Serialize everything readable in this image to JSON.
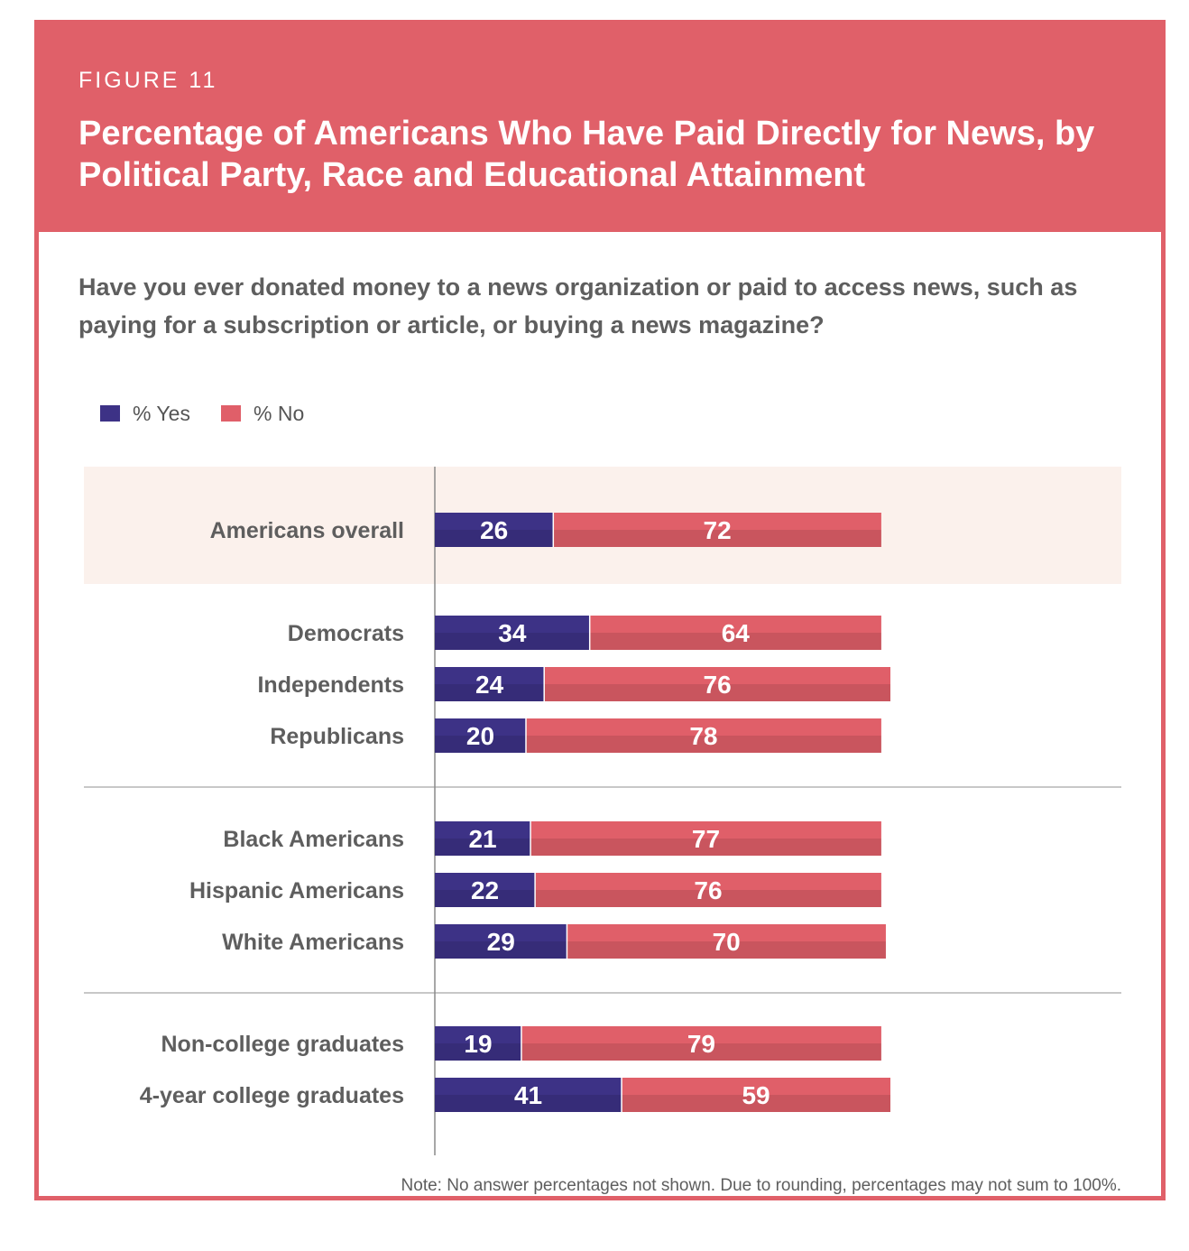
{
  "header": {
    "figure_label": "FIGURE 11",
    "title": "Percentage of Americans Who Have Paid Directly for News, by Political Party, Race and Educational Attainment"
  },
  "question": "Have you ever donated money to a news organization or paid to access news, such as paying for a subscription or article, or buying a news magazine?",
  "colors": {
    "accent": "#e06069",
    "yes": "#3d3286",
    "no": "#e05f69",
    "highlight_band": "#fbf1ec",
    "text": "#5e5e5e"
  },
  "legend": [
    {
      "label": "% Yes",
      "color": "#3d3286"
    },
    {
      "label": "% No",
      "color": "#e05f69"
    }
  ],
  "chart_data": {
    "type": "bar",
    "orientation": "horizontal",
    "stacked": true,
    "categories": [
      "Americans overall",
      "Democrats",
      "Independents",
      "Republicans",
      "Black Americans",
      "Hispanic Americans",
      "White Americans",
      "Non-college graduates",
      "4-year college graduates"
    ],
    "groups": [
      [
        "Americans overall"
      ],
      [
        "Democrats",
        "Independents",
        "Republicans"
      ],
      [
        "Black Americans",
        "Hispanic Americans",
        "White Americans"
      ],
      [
        "Non-college graduates",
        "4-year college graduates"
      ]
    ],
    "highlighted_category": "Americans overall",
    "series": [
      {
        "name": "% Yes",
        "values": [
          26,
          34,
          24,
          20,
          21,
          22,
          29,
          19,
          41
        ]
      },
      {
        "name": "% No",
        "values": [
          72,
          64,
          76,
          78,
          77,
          76,
          70,
          79,
          59
        ]
      }
    ],
    "xlim": [
      0,
      100
    ],
    "data_labels": true,
    "legend_position": "top-left"
  },
  "note": "Note: No answer percentages not shown. Due to rounding, percentages may not sum to 100%."
}
